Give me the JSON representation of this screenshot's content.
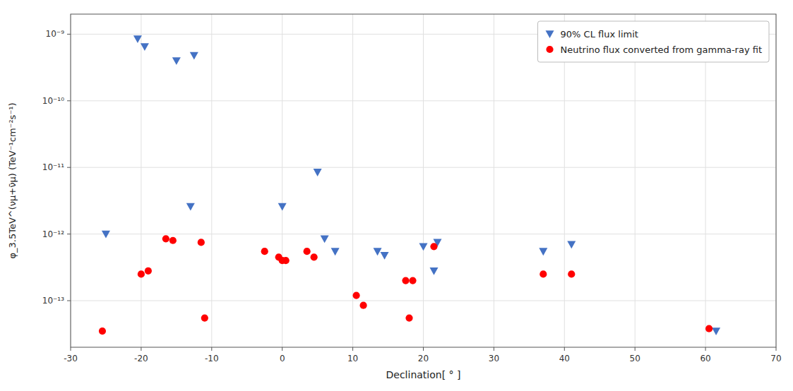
{
  "chart_data": {
    "type": "scatter",
    "xlabel": "Declination[ ° ]",
    "ylabel": "φ_3.5TeV^(νμ+ν̄μ) (TeV⁻¹cm⁻²s⁻¹)",
    "series": [
      {
        "name": "90% CL flux limit",
        "color": "#4472C4",
        "marker": "triangle-down",
        "x": [
          -20.5,
          -19.5,
          -15.0,
          -12.5,
          -25.0,
          -13.0,
          0.0,
          6.0,
          7.5,
          13.5,
          14.5,
          5.0,
          20.0,
          21.5,
          22.0,
          37.0,
          41.0,
          61.5
        ],
        "values": [
          8.5e-10,
          6.5e-10,
          4e-10,
          4.8e-10,
          1e-12,
          2.6e-12,
          2.6e-12,
          8.5e-13,
          5.5e-13,
          5.5e-13,
          4.8e-13,
          8.5e-12,
          6.5e-13,
          2.8e-13,
          7.5e-13,
          5.5e-13,
          7e-13,
          3.5e-14
        ]
      },
      {
        "name": "Neutrino flux converted from gamma-ray fit",
        "color": "#FF0000",
        "marker": "circle",
        "x": [
          -25.5,
          -20.0,
          -19.0,
          -16.5,
          -15.5,
          -11.5,
          -11.0,
          -2.5,
          -0.5,
          0.0,
          0.5,
          3.5,
          4.5,
          10.5,
          11.5,
          17.5,
          18.5,
          18.0,
          21.5,
          37.0,
          41.0,
          60.5
        ],
        "values": [
          3.5e-14,
          2.5e-13,
          2.8e-13,
          8.5e-13,
          8e-13,
          7.5e-13,
          5.5e-14,
          5.5e-13,
          4.5e-13,
          4e-13,
          4e-13,
          5.5e-13,
          4.5e-13,
          1.2e-13,
          8.5e-14,
          2e-13,
          2e-13,
          5.5e-14,
          6.5e-13,
          2.5e-13,
          2.5e-13,
          3.8e-14
        ]
      }
    ],
    "xlim": [
      -30,
      70
    ],
    "ylim": [
      2e-14,
      2e-09
    ],
    "xticks": [
      -30,
      -20,
      -10,
      0,
      10,
      20,
      30,
      40,
      50,
      60,
      70
    ],
    "yticks": [
      {
        "value": 1e-13,
        "label": "10⁻¹³"
      },
      {
        "value": 1e-12,
        "label": "10⁻¹²"
      },
      {
        "value": 1e-11,
        "label": "10⁻¹¹"
      },
      {
        "value": 1e-10,
        "label": "10⁻¹⁰"
      },
      {
        "value": 1e-09,
        "label": "10⁻⁹"
      }
    ],
    "log": "y",
    "grid": true,
    "legend": "upper right"
  }
}
